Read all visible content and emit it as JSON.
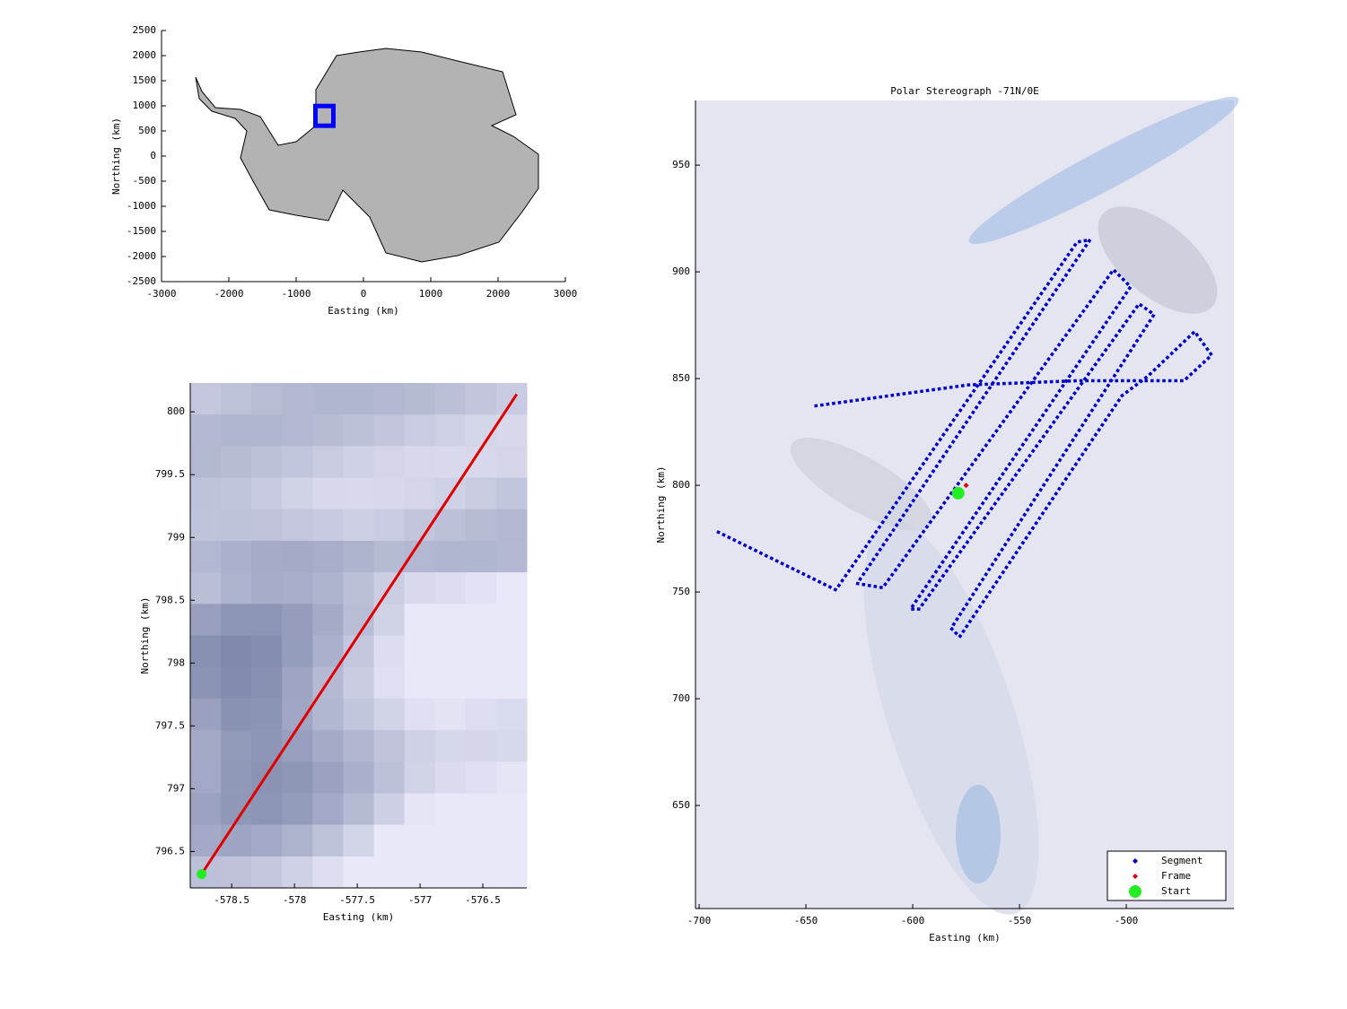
{
  "chart_data": [
    {
      "type": "scatter",
      "xlabel": "Easting (km)",
      "ylabel": "Northing (km)",
      "xlim": [
        -3000,
        3000
      ],
      "xticks": [
        -3000,
        -2000,
        -1000,
        0,
        1000,
        2000,
        3000
      ],
      "ylim": [
        -2500,
        2500
      ],
      "yticks": [
        -2500,
        -2000,
        -1500,
        -1000,
        -500,
        0,
        500,
        1000,
        1500,
        2000,
        2500
      ],
      "series": [
        {
          "color": "#0000ff",
          "linestyle": "none",
          "marker": "square",
          "x": [
            -580
          ],
          "values": [
            800
          ]
        }
      ]
    },
    {
      "type": "line",
      "xlabel": "Easting (km)",
      "ylabel": "Northing (km)",
      "xlim": [
        -578.83,
        -576.15
      ],
      "xticks": [
        -578.5,
        -578,
        -577.5,
        -577,
        -576.5
      ],
      "ylim": [
        796.21,
        800.23
      ],
      "yticks": [
        796.5,
        797,
        797.5,
        798,
        798.5,
        799,
        799.5,
        800
      ],
      "series": [
        {
          "color": "#e00000",
          "linestyle": "solid",
          "marker": "none",
          "x": [
            -578.74,
            -576.23
          ],
          "values": [
            796.32,
            800.14
          ]
        },
        {
          "color": "#22ee22",
          "linestyle": "none",
          "marker": "circle",
          "x": [
            -578.74
          ],
          "values": [
            796.32
          ]
        }
      ]
    },
    {
      "type": "line",
      "title": "Polar Stereograph -71N/0E",
      "xlabel": "Easting (km)",
      "ylabel": "Northing (km)",
      "xlim": [
        -701.7,
        -449.6
      ],
      "xticks": [
        -700,
        -650,
        -600,
        -550,
        -500
      ],
      "ylim": [
        601.7,
        980.3
      ],
      "yticks": [
        650,
        700,
        750,
        800,
        850,
        900,
        950
      ],
      "legend": "southeast",
      "series": [
        {
          "name": "Segment",
          "color": "#0000cc",
          "linestyle": "dotted",
          "marker": "none",
          "x": [
            -691,
            -636,
            -523,
            -517,
            -626,
            -614,
            -506,
            -498,
            -601,
            -597,
            -494,
            -487,
            -582,
            -578,
            -502,
            -490,
            -468,
            -460,
            -473,
            -523,
            -574,
            -647
          ],
          "values": [
            778,
            751,
            914,
            915,
            754,
            752,
            901,
            893,
            742,
            742,
            885,
            880,
            733,
            729,
            842,
            851,
            872,
            861,
            849,
            849,
            847,
            837
          ]
        },
        {
          "name": "Frame",
          "color": "#e00000",
          "linestyle": "none",
          "marker": "diamond",
          "x": [
            -575
          ],
          "values": [
            800
          ]
        },
        {
          "name": "Start",
          "color": "#22ee22",
          "linestyle": "none",
          "marker": "bigcircle",
          "x": [
            -578.7
          ],
          "values": [
            796.3
          ]
        }
      ]
    }
  ]
}
